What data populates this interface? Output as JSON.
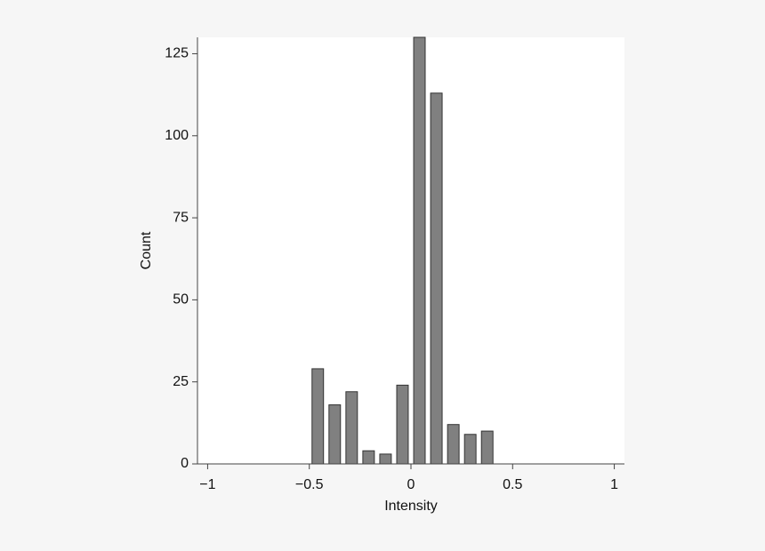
{
  "chart_data": {
    "type": "histogram",
    "x_label": "Intensity",
    "y_label": "Count",
    "bins": [
      -1,
      -0.9167,
      -0.8333,
      -0.75,
      -0.6667,
      -0.5833,
      -0.5,
      -0.4167,
      -0.3333,
      -0.25,
      -0.1667,
      -0.0833,
      0,
      0.0833,
      0.1667,
      0.25,
      0.3333,
      0.4167,
      0.5,
      0.5833,
      0.6667,
      0.75,
      0.8333,
      0.9167,
      1
    ],
    "values": [
      0,
      0,
      0,
      0,
      0,
      0,
      29,
      18,
      22,
      4,
      3,
      24,
      130,
      113,
      12,
      9,
      10,
      0,
      0,
      0,
      0,
      0,
      0,
      0
    ],
    "color": "#808080",
    "xlim": [
      -1.05,
      1.05
    ],
    "xticks": [
      {
        "value": -1,
        "label": "−1"
      },
      {
        "value": -0.5,
        "label": "−0.5"
      },
      0,
      0.5,
      1
    ],
    "ylim": [
      0,
      130
    ],
    "yticks": [
      0,
      25,
      50,
      75,
      100,
      125
    ]
  }
}
